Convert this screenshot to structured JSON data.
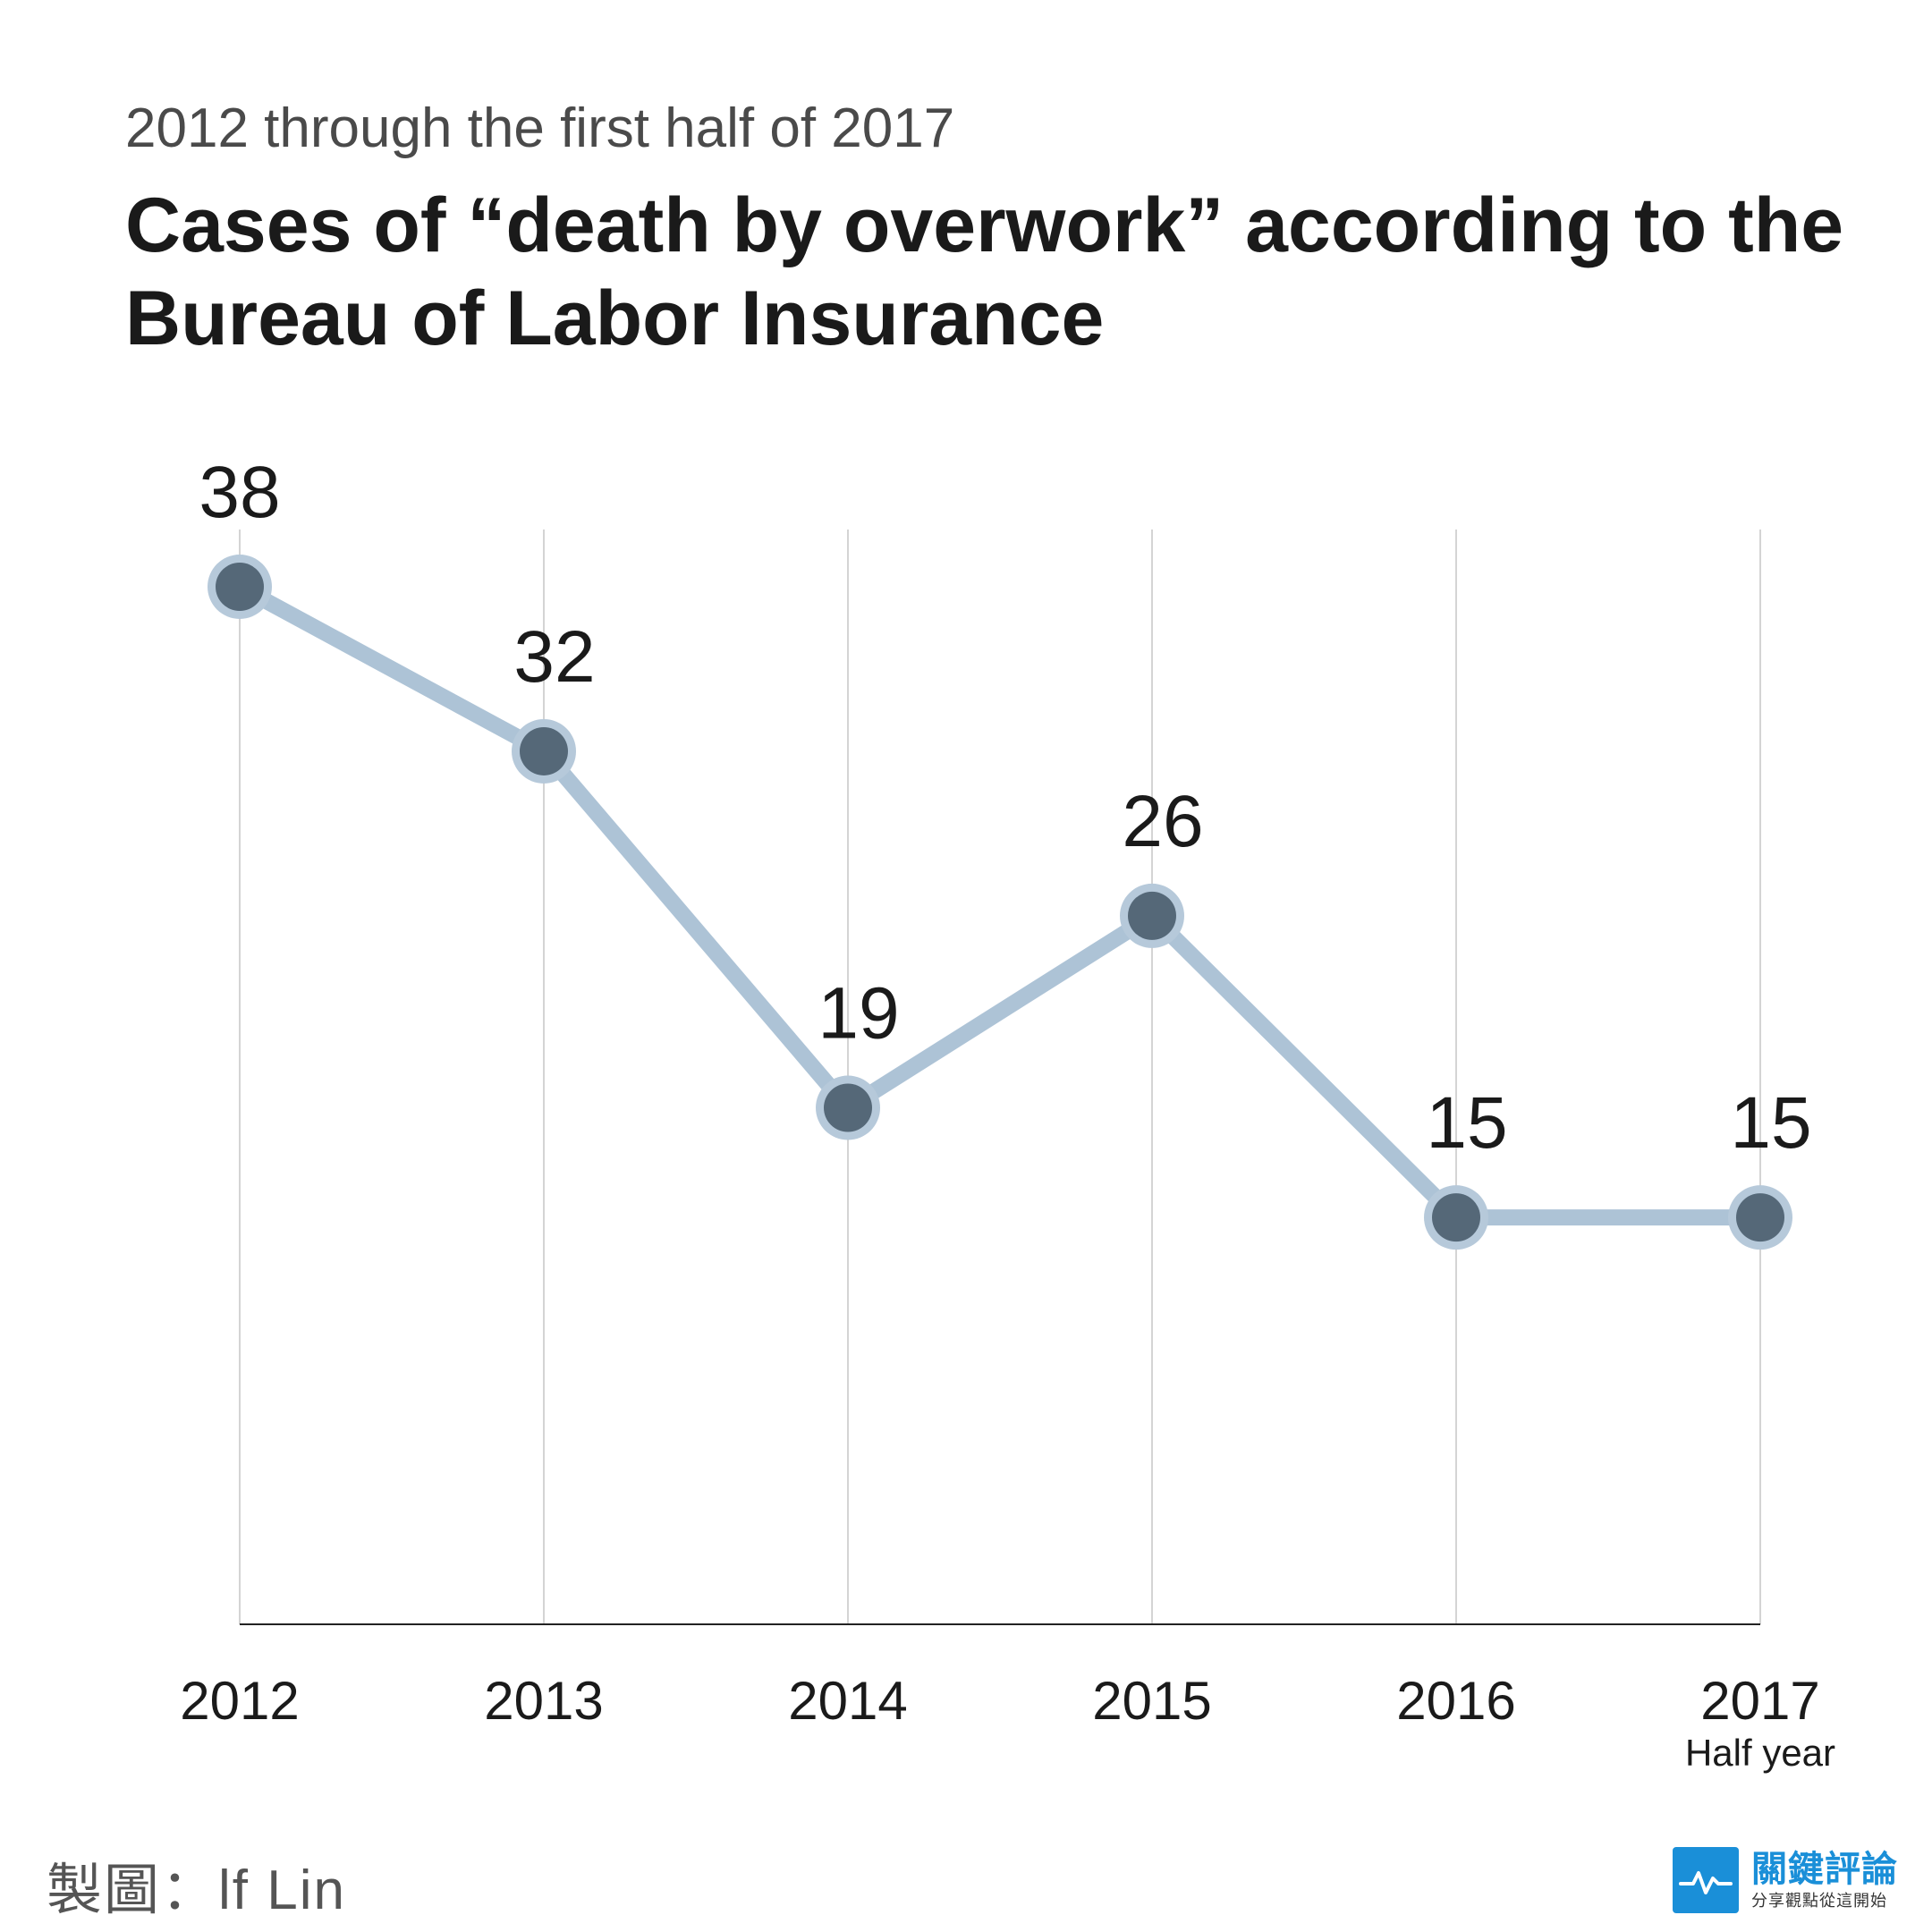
{
  "header": {
    "subtitle": "2012 through the first half of 2017",
    "title": "Cases of “death by overwork” according to the Bureau of Labor Insurance"
  },
  "chart_data": {
    "type": "line",
    "title": "Cases of “death by overwork” according to the Bureau of Labor Insurance",
    "subtitle": "2012 through the first half of 2017",
    "categories": [
      "2012",
      "2013",
      "2014",
      "2015",
      "2016",
      "2017"
    ],
    "category_notes": [
      "",
      "",
      "",
      "",
      "",
      "Half year"
    ],
    "series": [
      {
        "name": "Cases",
        "values": [
          38,
          32,
          19,
          26,
          15,
          15
        ]
      }
    ],
    "xlabel": "",
    "ylabel": "",
    "ylim": [
      0,
      40
    ],
    "grid": "vertical",
    "colors": {
      "line": "#adc3d6",
      "marker_fill": "#556878",
      "marker_ring": "#b6c9da",
      "axis": "#222222",
      "grid": "#d4d4d4"
    }
  },
  "footer": {
    "credit": "製圖：lf Lin",
    "logo_name": "關鍵評論",
    "logo_tagline": "分享觀點從這開始",
    "logo_icon": "pulse-line-icon"
  }
}
